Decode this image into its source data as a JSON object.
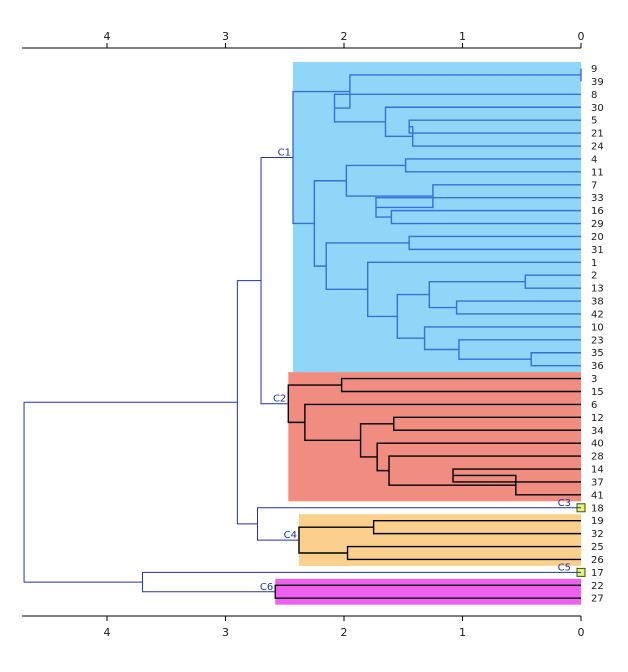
{
  "axis": {
    "ticks": [
      4,
      3,
      2,
      1,
      0
    ],
    "tick_labels": [
      "4",
      "3",
      "2",
      "1",
      "0"
    ],
    "range": [
      4.7,
      0
    ]
  },
  "colors": {
    "frame": "#000000",
    "link": "#2233aa",
    "inner_link": "#3a6fd8",
    "C1": "#8fd6f8",
    "C2": "#f08c80",
    "C3": "#e8f07a",
    "C4": "#fbd08c",
    "C5": "#e8f07a",
    "C6": "#f060f0"
  },
  "leaves": [
    "9",
    "39",
    "8",
    "30",
    "5",
    "21",
    "24",
    "4",
    "11",
    "7",
    "33",
    "16",
    "29",
    "20",
    "31",
    "1",
    "2",
    "13",
    "38",
    "42",
    "10",
    "23",
    "35",
    "36",
    "3",
    "15",
    "6",
    "12",
    "34",
    "40",
    "28",
    "14",
    "37",
    "41",
    "18",
    "19",
    "32",
    "25",
    "26",
    "17",
    "22",
    "27"
  ],
  "chart_data": {
    "type": "dendrogram",
    "x_axis_direction": "reversed",
    "xlim": [
      4.7,
      0
    ],
    "leaf_order": [
      "9",
      "39",
      "8",
      "30",
      "5",
      "21",
      "24",
      "4",
      "11",
      "7",
      "33",
      "16",
      "29",
      "20",
      "31",
      "1",
      "2",
      "13",
      "38",
      "42",
      "10",
      "23",
      "35",
      "36",
      "3",
      "15",
      "6",
      "12",
      "34",
      "40",
      "28",
      "14",
      "37",
      "41",
      "18",
      "19",
      "32",
      "25",
      "26",
      "17",
      "22",
      "27"
    ],
    "clusters": [
      {
        "label": "C1",
        "color": "#8fd6f8",
        "members": [
          "9",
          "39",
          "8",
          "30",
          "5",
          "21",
          "24",
          "4",
          "11",
          "7",
          "33",
          "16",
          "29",
          "20",
          "31",
          "1",
          "2",
          "13",
          "38",
          "42",
          "10",
          "23",
          "35",
          "36"
        ]
      },
      {
        "label": "C2",
        "color": "#f08c80",
        "members": [
          "3",
          "15",
          "6",
          "12",
          "34",
          "40",
          "28",
          "14",
          "37",
          "41"
        ]
      },
      {
        "label": "C3",
        "color": "#e8f07a",
        "members": [
          "18"
        ]
      },
      {
        "label": "C4",
        "color": "#fbd08c",
        "members": [
          "19",
          "32",
          "25",
          "26"
        ]
      },
      {
        "label": "C5",
        "color": "#e8f07a",
        "members": [
          "17"
        ]
      },
      {
        "label": "C6",
        "color": "#f060f0",
        "members": [
          "22",
          "27"
        ]
      }
    ],
    "merges": [
      {
        "id": "m1",
        "children": [
          "9",
          "39"
        ],
        "height": 0
      },
      {
        "id": "m2",
        "children": [
          "5",
          "21"
        ],
        "height": 1.45
      },
      {
        "id": "m3",
        "children": [
          "m2",
          "24"
        ],
        "height": 1.42
      },
      {
        "id": "m4",
        "children": [
          "30",
          "m3"
        ],
        "height": 1.65
      },
      {
        "id": "m5",
        "children": [
          "8",
          "m4"
        ],
        "height": 2.08
      },
      {
        "id": "m6",
        "children": [
          "m1",
          "m5"
        ],
        "height": 1.95
      },
      {
        "id": "m7",
        "children": [
          "4",
          "11"
        ],
        "height": 1.48
      },
      {
        "id": "m8",
        "children": [
          "16",
          "29"
        ],
        "height": 1.6
      },
      {
        "id": "m9",
        "children": [
          "33",
          "m8"
        ],
        "height": 1.73
      },
      {
        "id": "m10",
        "children": [
          "7",
          "m9"
        ],
        "height": 1.25
      },
      {
        "id": "m11",
        "children": [
          "m7",
          "m10"
        ],
        "height": 1.98
      },
      {
        "id": "m12",
        "children": [
          "20",
          "31"
        ],
        "height": 1.45
      },
      {
        "id": "m13",
        "children": [
          "2",
          "13"
        ],
        "height": 0.47
      },
      {
        "id": "m14",
        "children": [
          "38",
          "42"
        ],
        "height": 1.05
      },
      {
        "id": "m15",
        "children": [
          "m13",
          "m14"
        ],
        "height": 1.28
      },
      {
        "id": "m16",
        "children": [
          "35",
          "36"
        ],
        "height": 0.42
      },
      {
        "id": "m17",
        "children": [
          "23",
          "m16"
        ],
        "height": 1.03
      },
      {
        "id": "m18",
        "children": [
          "10",
          "m17"
        ],
        "height": 1.32
      },
      {
        "id": "m19",
        "children": [
          "m15",
          "m18"
        ],
        "height": 1.55
      },
      {
        "id": "m20",
        "children": [
          "1",
          "m19"
        ],
        "height": 1.8
      },
      {
        "id": "m21",
        "children": [
          "m12",
          "m20"
        ],
        "height": 2.15
      },
      {
        "id": "m22",
        "children": [
          "m11",
          "m21"
        ],
        "height": 2.25
      },
      {
        "id": "m23",
        "children": [
          "m6",
          "m22"
        ],
        "height": 2.43
      },
      {
        "id": "m24",
        "children": [
          "3",
          "15"
        ],
        "height": 2.02
      },
      {
        "id": "m25",
        "children": [
          "12",
          "34"
        ],
        "height": 1.58
      },
      {
        "id": "m26",
        "children": [
          "14",
          "37"
        ],
        "height": 1.08
      },
      {
        "id": "m27",
        "children": [
          "m26",
          "41"
        ],
        "height": 0.55
      },
      {
        "id": "m28",
        "children": [
          "28",
          "m27"
        ],
        "height": 1.62
      },
      {
        "id": "m29",
        "children": [
          "40",
          "m28"
        ],
        "height": 1.72
      },
      {
        "id": "m30",
        "children": [
          "m25",
          "m29"
        ],
        "height": 1.86
      },
      {
        "id": "m31",
        "children": [
          "6",
          "m30"
        ],
        "height": 2.33
      },
      {
        "id": "m32",
        "children": [
          "m24",
          "m31"
        ],
        "height": 2.47
      },
      {
        "id": "m33",
        "children": [
          "m23",
          "m32"
        ],
        "height": 2.7
      },
      {
        "id": "m34",
        "children": [
          "19",
          "32"
        ],
        "height": 1.75
      },
      {
        "id": "m35",
        "children": [
          "25",
          "26"
        ],
        "height": 1.97
      },
      {
        "id": "m36",
        "children": [
          "m34",
          "m35"
        ],
        "height": 2.38
      },
      {
        "id": "m37",
        "children": [
          "18",
          "m36"
        ],
        "height": 2.73
      },
      {
        "id": "m38",
        "children": [
          "m33",
          "m37"
        ],
        "height": 2.9
      },
      {
        "id": "m39",
        "children": [
          "22",
          "27"
        ],
        "height": 2.58
      },
      {
        "id": "m40",
        "children": [
          "17",
          "m39"
        ],
        "height": 3.7
      },
      {
        "id": "m41",
        "children": [
          "m38",
          "m40"
        ],
        "height": 4.7
      }
    ]
  }
}
